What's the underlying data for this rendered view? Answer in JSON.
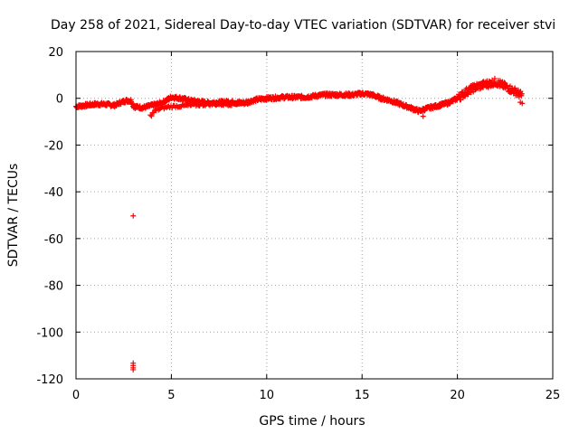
{
  "chart_data": {
    "type": "scatter",
    "title": "Day 258 of 2021, Sidereal Day-to-day VTEC variation (SDTVAR) for receiver stvi",
    "xlabel": "GPS time / hours",
    "ylabel": "SDTVAR / TECUs",
    "xlim": [
      0,
      25
    ],
    "ylim": [
      -120,
      20
    ],
    "xticks": [
      0,
      5,
      10,
      15,
      20,
      25
    ],
    "yticks": [
      20,
      0,
      -20,
      -40,
      -60,
      -80,
      -100,
      -120
    ],
    "grid": true,
    "marker": "+",
    "color": "#ff0000",
    "series": [
      {
        "name": "SDTVAR",
        "curve": [
          [
            0.0,
            -3.5
          ],
          [
            0.5,
            -3.0
          ],
          [
            1.0,
            -2.5
          ],
          [
            1.5,
            -2.5
          ],
          [
            2.0,
            -3.0
          ],
          [
            2.3,
            -2.0
          ],
          [
            2.6,
            -1.0
          ],
          [
            2.9,
            -1.0
          ],
          [
            3.0,
            -3.5
          ],
          [
            3.5,
            -4.0
          ],
          [
            4.0,
            -3.0
          ],
          [
            4.5,
            -2.0
          ],
          [
            5.0,
            0.5
          ],
          [
            5.5,
            0.0
          ],
          [
            6.0,
            -1.0
          ],
          [
            7.0,
            -2.0
          ],
          [
            8.0,
            -1.5
          ],
          [
            8.8,
            -2.0
          ],
          [
            9.5,
            -0.5
          ],
          [
            10.0,
            0.0
          ],
          [
            11.0,
            0.5
          ],
          [
            12.0,
            0.5
          ],
          [
            12.5,
            1.0
          ],
          [
            13.0,
            1.5
          ],
          [
            14.0,
            1.5
          ],
          [
            14.5,
            1.5
          ],
          [
            15.0,
            2.0
          ],
          [
            15.5,
            1.5
          ],
          [
            16.0,
            0.0
          ],
          [
            16.5,
            -1.0
          ],
          [
            17.0,
            -2.5
          ],
          [
            17.5,
            -4.0
          ],
          [
            18.0,
            -5.5
          ],
          [
            18.3,
            -4.5
          ],
          [
            18.8,
            -3.5
          ],
          [
            19.5,
            -2.0
          ],
          [
            20.0,
            0.0
          ],
          [
            20.5,
            3.0
          ],
          [
            21.0,
            5.0
          ],
          [
            21.5,
            6.0
          ],
          [
            22.0,
            7.0
          ],
          [
            22.5,
            5.0
          ],
          [
            23.0,
            3.0
          ],
          [
            23.4,
            1.0
          ]
        ],
        "lower_branch": [
          [
            3.9,
            -7.5
          ],
          [
            4.2,
            -5.0
          ],
          [
            4.6,
            -4.0
          ],
          [
            5.0,
            -3.5
          ],
          [
            6.0,
            -3.0
          ],
          [
            7.0,
            -2.5
          ],
          [
            8.0,
            -2.5
          ],
          [
            9.0,
            -2.0
          ]
        ],
        "outliers": [
          [
            3.0,
            -50.3
          ],
          [
            3.0,
            -113.3
          ],
          [
            3.0,
            -114.3
          ],
          [
            3.0,
            -115.3
          ],
          [
            3.0,
            -116.1
          ],
          [
            18.2,
            -7.7
          ],
          [
            23.3,
            -1.7
          ],
          [
            23.4,
            -2.2
          ]
        ]
      }
    ]
  }
}
